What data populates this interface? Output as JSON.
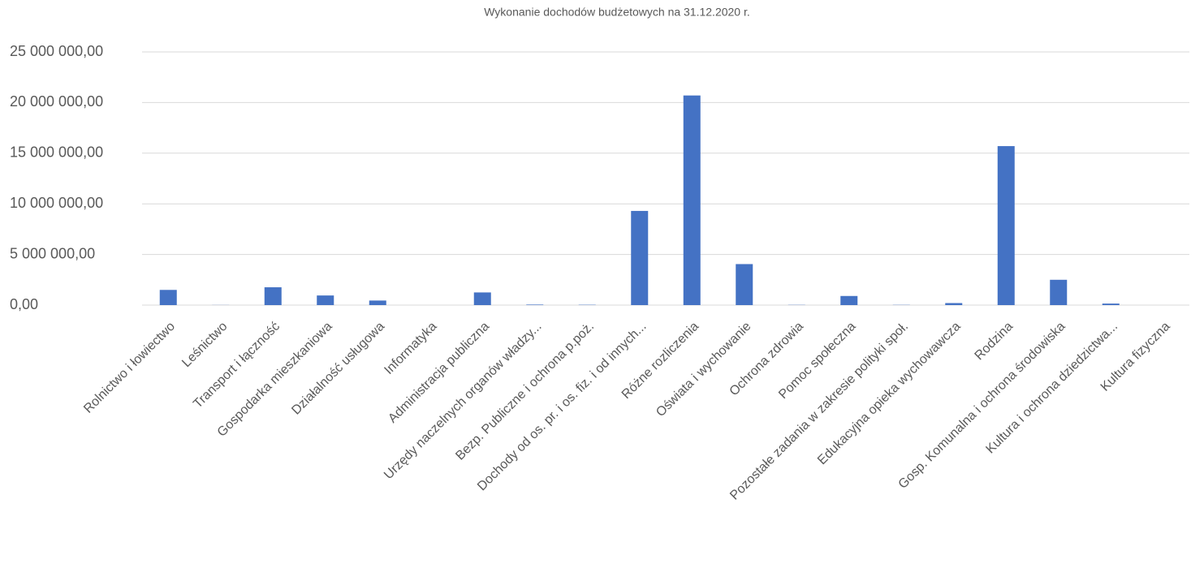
{
  "chart_data": {
    "type": "bar",
    "title": "Wykonanie dochodów budżetowych na 31.12.2020 r.",
    "categories": [
      "Rolnictwo i łowiectwo",
      "Leśnictwo",
      "Transport i łączność",
      "Gospodarka mieszkaniowa",
      "Działalność usługowa",
      "Informatyka",
      "Administracja publiczna",
      "Urzędy naczelnych organów władzy...",
      "Bezp. Publiczne i ochrona p.poż.",
      "Dochody od os. pr. i os. fiz. i od innych...",
      "Różne rozliczenia",
      "Oświata i wychowanie",
      "Ochrona zdrowia",
      "Pomoc społeczna",
      "Pozostałe zadania w zakresie polityki społ.",
      "Edukacyjna opieka wychowawcza",
      "Rodzina",
      "Gosp. Komunalna i ochrona środowiska",
      "Kultura i ochrona dziedzictwa...",
      "Kultura fizyczna"
    ],
    "values": [
      1500000,
      10000,
      1760000,
      950000,
      450000,
      0,
      1250000,
      50000,
      30000,
      9300000,
      20700000,
      4050000,
      20000,
      900000,
      20000,
      200000,
      15700000,
      2500000,
      150000,
      0
    ],
    "color": "#4472c4",
    "ylim": [
      0,
      25000000
    ],
    "yticks": [
      {
        "value": 0,
        "label": "0,00"
      },
      {
        "value": 5000000,
        "label": "5 000 000,00"
      },
      {
        "value": 10000000,
        "label": "10 000 000,00"
      },
      {
        "value": 15000000,
        "label": "15 000 000,00"
      },
      {
        "value": 20000000,
        "label": "20 000 000,00"
      },
      {
        "value": 25000000,
        "label": "25 000 000,00"
      }
    ],
    "grid": true
  }
}
